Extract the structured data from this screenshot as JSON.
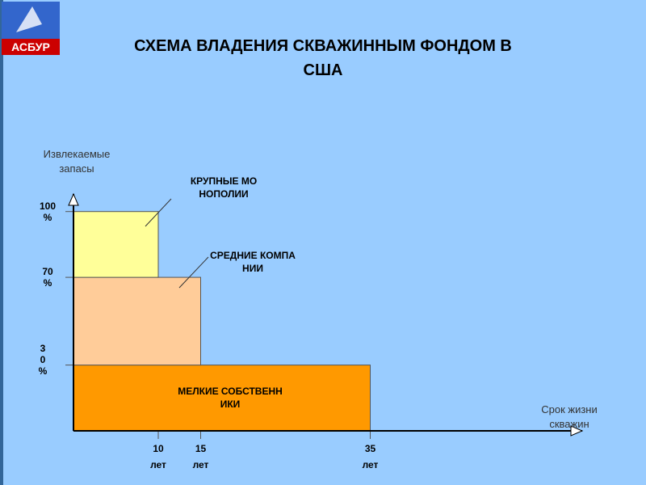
{
  "logo": "АСБУР",
  "chart_data": {
    "type": "stacked-step",
    "title": "СХЕМА ВЛАДЕНИЯ СКВАЖИННЫМ ФОНДОМ В США",
    "y_label": "Извлекаемые запасы",
    "x_label": "Срок жизни скважин",
    "series": [
      {
        "name": "МЕЛКИЕ СОБСТВЕННИКИ",
        "color": "#ff9900",
        "value": 30,
        "x_end": 35
      },
      {
        "name": "СРЕДНИЕ КОМПАНИИ",
        "color": "#ffcc99",
        "value": 40,
        "x_end": 15
      },
      {
        "name": "КРУПНЫЕ МОНОПОЛИИ",
        "color": "#ffff99",
        "value": 30,
        "x_end": 10
      }
    ],
    "xlim": [
      0,
      60
    ],
    "ylim": [
      0,
      108
    ],
    "xticks": [
      {
        "value": 10,
        "label": "10 лет"
      },
      {
        "value": 15,
        "label": "15 лет"
      },
      {
        "value": 35,
        "label": "35 лет"
      }
    ],
    "yticks": [
      {
        "value": 30,
        "label": "3 0 %"
      },
      {
        "value": 70,
        "label": "70 %"
      },
      {
        "value": 100,
        "label": "100 %"
      }
    ]
  }
}
